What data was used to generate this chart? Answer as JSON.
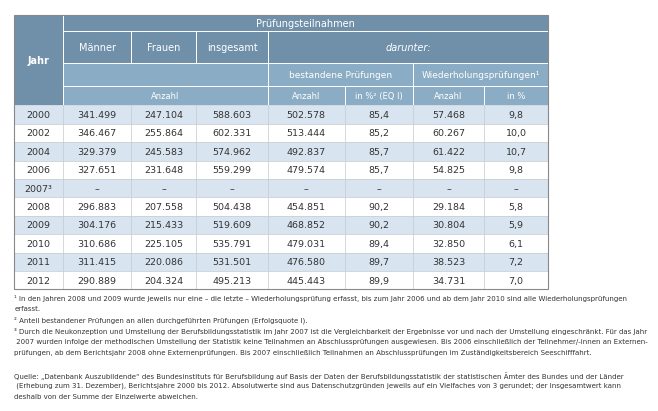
{
  "rows": [
    [
      "2000",
      "341.499",
      "247.104",
      "588.603",
      "502.578",
      "85,4",
      "57.468",
      "9,8"
    ],
    [
      "2002",
      "346.467",
      "255.864",
      "602.331",
      "513.444",
      "85,2",
      "60.267",
      "10,0"
    ],
    [
      "2004",
      "329.379",
      "245.583",
      "574.962",
      "492.837",
      "85,7",
      "61.422",
      "10,7"
    ],
    [
      "2006",
      "327.651",
      "231.648",
      "559.299",
      "479.574",
      "85,7",
      "54.825",
      "9,8"
    ],
    [
      "2007³",
      "–",
      "–",
      "–",
      "–",
      "–",
      "–",
      "–"
    ],
    [
      "2008",
      "296.883",
      "207.558",
      "504.438",
      "454.851",
      "90,2",
      "29.184",
      "5,8"
    ],
    [
      "2009",
      "304.176",
      "215.433",
      "519.609",
      "468.852",
      "90,2",
      "30.804",
      "5,9"
    ],
    [
      "2010",
      "310.686",
      "225.105",
      "535.791",
      "479.031",
      "89,4",
      "32.850",
      "6,1"
    ],
    [
      "2011",
      "311.415",
      "220.086",
      "531.501",
      "476.580",
      "89,7",
      "38.523",
      "7,2"
    ],
    [
      "2012",
      "290.889",
      "204.324",
      "495.213",
      "445.443",
      "89,9",
      "34.731",
      "7,0"
    ]
  ],
  "col_labels_h1": [
    "Jahr",
    "Prüfungsteilnahmen"
  ],
  "col_labels_h2": [
    "",
    "Männer",
    "Frauen",
    "insgesamt",
    "darunter:"
  ],
  "col_labels_h3": [
    "",
    "",
    "",
    "",
    "bestandene Prüfungen",
    "",
    "Wiederholungsprüfungen¹"
  ],
  "col_labels_h4": [
    "",
    "Anzahl",
    "",
    "",
    "Anzahl",
    "in %² (EQ I)",
    "Anzahl",
    "in %"
  ],
  "footnote_lines": [
    "¹ In den Jahren 2008 und 2009 wurde jeweils nur eine – die letzte – Wiederholungsprüfung erfasst, bis zum Jahr 2006 und ab dem Jahr 2010 sind alle Wiederholungsprüfungen",
    "erfasst.",
    "² Anteil bestandener Prüfungen an allen durchgeführten Prüfungen (Erfolgsquote I).",
    "³ Durch die Neukonzeption und Umstellung der Berufsbildungsstatistik im Jahr 2007 ist die Vergleichbarkeit der Ergebnisse vor und nach der Umstellung eingeschränkt. Für das Jahr",
    " 2007 wurden infolge der methodischen Umstellung der Statistik keine Teilnahmen an Abschlussprüfungen ausgewiesen. Bis 2006 einschließlich der Teilnehmer/-innen an Externen-",
    "prüfungen, ab dem Berichtsjahr 2008 ohne Externenprüfungen. Bis 2007 einschließlich Teilnahmen an Abschlussprüfungen im Zuständigkeitsbereich Seeschifffahrt.",
    "",
    "Quelle: „Datenbank Auszubildende“ des Bundesinstituts für Berufsbildung auf Basis der Daten der Berufsbildungsstatistik der statistischen Ämter des Bundes und der Länder",
    " (Erhebung zum 31. Dezember), Berichtsjahre 2000 bis 2012. Absolutwerte sind aus Datenschutzgründen jeweils auf ein Vielfaches von 3 gerundet; der Insgesamtwert kann",
    "deshalb von der Summe der Einzelwerte abweichen."
  ],
  "color_header_dark": "#7090aa",
  "color_header_mid": "#8aacc4",
  "color_row_light": "#d8e4f0",
  "color_row_white": "#ffffff",
  "color_border": "#ffffff",
  "color_text_header": "#ffffff",
  "color_text_data": "#333333",
  "color_text_footnote": "#333333"
}
